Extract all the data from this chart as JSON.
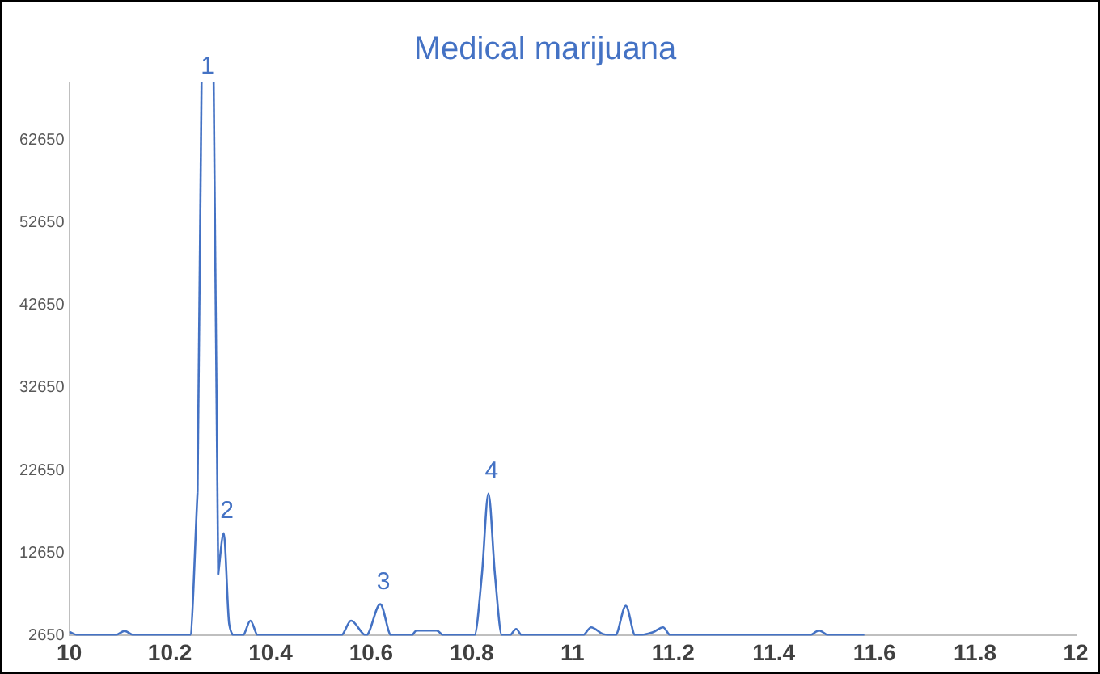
{
  "chart_data": {
    "type": "line",
    "title": "Medical marijuana",
    "x": [
      10.0,
      10.02,
      10.09,
      10.11,
      10.13,
      10.24,
      10.255,
      10.263,
      10.287,
      10.296,
      10.307,
      10.318,
      10.33,
      10.345,
      10.36,
      10.375,
      10.54,
      10.56,
      10.59,
      10.618,
      10.64,
      10.68,
      10.69,
      10.73,
      10.745,
      10.805,
      10.82,
      10.833,
      10.846,
      10.86,
      10.875,
      10.888,
      10.9,
      11.02,
      11.037,
      11.06,
      11.085,
      11.106,
      11.125,
      11.16,
      11.18,
      11.195,
      11.47,
      11.49,
      11.51,
      11.58
    ],
    "series": [
      {
        "color": "#4472c4",
        "values": [
          3100,
          2650,
          2650,
          3200,
          2650,
          2650,
          20000,
          null,
          null,
          10050,
          15050,
          4000,
          2650,
          2650,
          4450,
          2650,
          2650,
          4450,
          2650,
          6450,
          2650,
          2650,
          3250,
          3250,
          2650,
          2650,
          10000,
          19850,
          10000,
          2650,
          2650,
          3450,
          2650,
          2650,
          3650,
          2850,
          2650,
          6250,
          2650,
          3050,
          3650,
          2650,
          2650,
          3250,
          2650,
          2650
        ]
      }
    ],
    "xlim": [
      10,
      12
    ],
    "xticks": [
      10,
      10.2,
      10.4,
      10.6,
      10.8,
      11,
      11.2,
      11.4,
      11.6,
      11.8,
      12
    ],
    "ylim": [
      2650,
      69650
    ],
    "yticks": [
      2650,
      12650,
      22650,
      32650,
      42650,
      52650,
      62650
    ],
    "grid": false,
    "legend": false,
    "marker": "none",
    "line_style": "solid",
    "annotations": [
      "1",
      {
        "text": "2",
        "x": 10.307,
        "y": 15050
      },
      {
        "text": "3",
        "x": 10.618,
        "y": 6450
      },
      {
        "text": "4",
        "x": 10.833,
        "y": 19850
      }
    ]
  }
}
